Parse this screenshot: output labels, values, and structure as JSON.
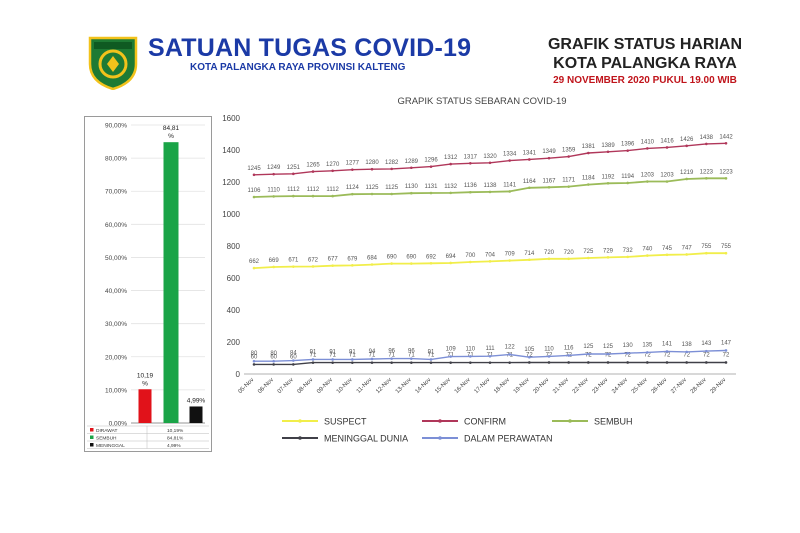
{
  "header": {
    "org_title": "SATUAN TUGAS COVID-19",
    "org_subtitle": "KOTA PALANGKA RAYA PROVINSI KALTENG",
    "report_title_line1": "GRAFIK STATUS HARIAN",
    "report_title_line2": "KOTA PALANGKA RAYA",
    "report_date": "29 NOVEMBER 2020 PUKUL 19.00 WIB",
    "logo_text": "PALANGKA RAYA",
    "logo_colors": {
      "shield": "#1e7a34",
      "ring": "#f2c21b",
      "text": "#ffffff"
    }
  },
  "chart_data": [
    {
      "type": "bar",
      "categories": [
        "DIRAWAT",
        "SEMBUH",
        "MENINGGAL"
      ],
      "values": [
        10.19,
        84.81,
        4.99
      ],
      "data_labels": [
        "10,19 %",
        "84,81 %",
        "4,99%"
      ],
      "colors": [
        "#e1121a",
        "#1aa447",
        "#111111"
      ],
      "ylim": [
        0,
        90
      ],
      "yticks": [
        "0,00%",
        "10,00%",
        "20,00%",
        "30,00%",
        "40,00%",
        "50,00%",
        "60,00%",
        "70,00%",
        "80,00%",
        "90,00%"
      ],
      "grid": true,
      "table": [
        {
          "label": "DIRAWAT",
          "value": "10,19%"
        },
        {
          "label": "SEMBUH",
          "value": "84,81%"
        },
        {
          "label": "MENINGGAL",
          "value": "4,99%"
        }
      ]
    },
    {
      "type": "line",
      "title": "GRAPIK STATUS SEBARAN COVID-19",
      "x": [
        "05-Nov",
        "06-Nov",
        "07-Nov",
        "08-Nov",
        "09-Nov",
        "10-Nov",
        "11-Nov",
        "12-Nov",
        "13-Nov",
        "14-Nov",
        "15-Nov",
        "16-Nov",
        "17-Nov",
        "18-Nov",
        "19-Nov",
        "20-Nov",
        "21-Nov",
        "22-Nov",
        "23-Nov",
        "24-Nov",
        "25-Nov",
        "26-Nov",
        "27-Nov",
        "28-Nov",
        "29-Nov"
      ],
      "ylim": [
        0,
        1600
      ],
      "yticks": [
        0,
        200,
        400,
        600,
        800,
        1000,
        1200,
        1400,
        1600
      ],
      "grid": false,
      "legend_position": "bottom",
      "series": [
        {
          "name": "SUSPECT",
          "color": "#f1ee4a",
          "values": [
            662,
            669,
            671,
            672,
            677,
            679,
            684,
            690,
            690,
            692,
            694,
            700,
            704,
            709,
            714,
            720,
            720,
            725,
            729,
            732,
            740,
            745,
            747,
            755,
            755
          ]
        },
        {
          "name": "CONFIRM",
          "color": "#b0375a",
          "values": [
            1245,
            1249,
            1251,
            1265,
            1270,
            1277,
            1280,
            1282,
            1289,
            1296,
            1312,
            1317,
            1320,
            1334,
            1341,
            1349,
            1359,
            1381,
            1389,
            1396,
            1410,
            1416,
            1426,
            1438,
            1442
          ]
        },
        {
          "name": "SEMBUH",
          "color": "#9bbb59",
          "values": [
            1106,
            1110,
            1112,
            1112,
            1112,
            1124,
            1125,
            1125,
            1130,
            1131,
            1132,
            1136,
            1138,
            1141,
            1164,
            1167,
            1171,
            1184,
            1192,
            1194,
            1203,
            1203,
            1219,
            1223,
            1223
          ]
        },
        {
          "name": "MENINGGAL DUNIA",
          "color": "#404048",
          "values": [
            60,
            60,
            60,
            71,
            71,
            71,
            71,
            71,
            71,
            71,
            71,
            71,
            71,
            71,
            72,
            72,
            72,
            72,
            72,
            72,
            72,
            72,
            72,
            72,
            72
          ]
        },
        {
          "name": "DALAM PERAWATAN",
          "color": "#7c8fd6",
          "values": [
            80,
            80,
            84,
            91,
            91,
            91,
            94,
            96,
            96,
            91,
            109,
            110,
            111,
            122,
            105,
            110,
            116,
            125,
            125,
            130,
            135,
            141,
            138,
            143,
            147
          ]
        }
      ]
    }
  ]
}
